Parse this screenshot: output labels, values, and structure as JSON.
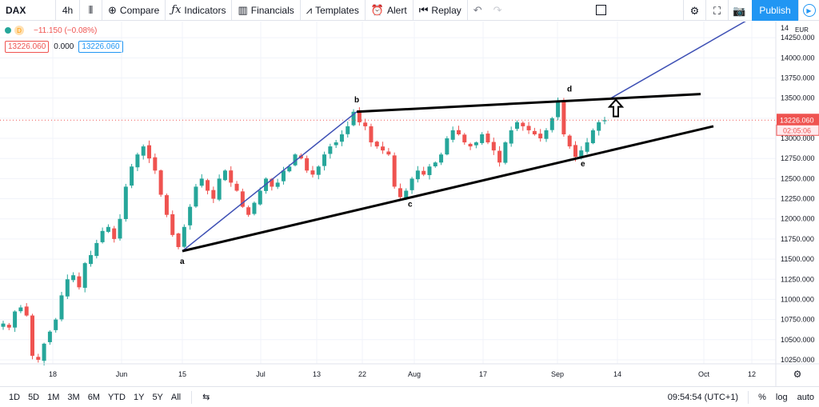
{
  "toolbar": {
    "symbol": "DAX",
    "interval": "4h",
    "compare": "Compare",
    "indicators": "Indicators",
    "financials": "Financials",
    "templates": "Templates",
    "alert": "Alert",
    "replay": "Replay",
    "publish": "Publish"
  },
  "legend": {
    "change": "−11.150 (−0.08%)",
    "source_badge": "D",
    "bid": "13226.060",
    "spread": "0.000",
    "ask": "13226.060"
  },
  "price_axis": {
    "currency": "EUR",
    "current_price": "13226.060",
    "countdown": "02:05:06",
    "top_tick": "14"
  },
  "bottom": {
    "ranges": [
      "1D",
      "5D",
      "1M",
      "3M",
      "6M",
      "YTD",
      "1Y",
      "5Y",
      "All"
    ],
    "clock": "09:54:54 (UTC+1)",
    "percent": "%",
    "log": "log",
    "auto": "auto"
  },
  "colors": {
    "up": "#26a69a",
    "down": "#ef5350",
    "trendline": "#000000",
    "wave_line": "#3f51b5",
    "accent": "#2196f3"
  },
  "chart_data": {
    "type": "candlestick",
    "instrument": "DAX",
    "timeframe": "4h",
    "x_ticks": [
      "18",
      "Jun",
      "15",
      "Jul",
      "13",
      "22",
      "Aug",
      "17",
      "Sep",
      "14",
      "Oct",
      "12"
    ],
    "y_ticks": [
      "14250.000",
      "14000.000",
      "13750.000",
      "13500.000",
      "13250.000",
      "13000.000",
      "12750.000",
      "12500.000",
      "12250.000",
      "12000.000",
      "11750.000",
      "11500.000",
      "11250.000",
      "11000.000",
      "10750.000",
      "10500.000",
      "10250.000"
    ],
    "ylim": [
      10200,
      14450
    ],
    "last_price": 13226.06,
    "wave_points": [
      {
        "label": "a",
        "date": "Jun 15",
        "price": 11600
      },
      {
        "label": "b",
        "date": "Jul 21",
        "price": 13330
      },
      {
        "label": "c",
        "date": "Jul 30",
        "price": 12270
      },
      {
        "label": "d",
        "date": "Sep 3",
        "price": 13460
      },
      {
        "label": "e",
        "date": "Sep 8",
        "price": 12770
      }
    ],
    "upper_trendline": [
      {
        "date": "Jul 21",
        "price": 13330
      },
      {
        "date": "Oct 1",
        "price": 13550
      }
    ],
    "lower_trendline": [
      {
        "date": "Jun 15",
        "price": 11600
      },
      {
        "date": "Oct 2",
        "price": 13150
      }
    ],
    "breakout_projection": [
      {
        "date": "Sep 13",
        "price": 13500
      },
      {
        "date": "Oct 12",
        "price": 14500
      }
    ],
    "candles_close": [
      10700,
      10650,
      10850,
      10900,
      10800,
      10300,
      10250,
      10450,
      10600,
      10750,
      11050,
      11250,
      11300,
      11150,
      11450,
      11550,
      11700,
      11850,
      11900,
      11750,
      12000,
      12400,
      12650,
      12800,
      12900,
      12750,
      12600,
      12300,
      12050,
      11800,
      11650,
      11900,
      12150,
      12400,
      12500,
      12350,
      12250,
      12500,
      12600,
      12450,
      12350,
      12150,
      12050,
      12200,
      12350,
      12500,
      12400,
      12450,
      12600,
      12650,
      12800,
      12750,
      12600,
      12550,
      12650,
      12800,
      12900,
      12950,
      13050,
      13150,
      13330,
      13200,
      13150,
      12950,
      12900,
      12850,
      12800,
      12400,
      12270,
      12350,
      12500,
      12600,
      12550,
      12650,
      12700,
      12800,
      13000,
      13100,
      13050,
      12950,
      12900,
      12950,
      13050,
      12950,
      12850,
      12700,
      12950,
      13100,
      13200,
      13150,
      13100,
      13050,
      13000,
      13100,
      13250,
      13460,
      13050,
      12900,
      12770,
      12850,
      12950,
      13100,
      13200,
      13226
    ]
  }
}
